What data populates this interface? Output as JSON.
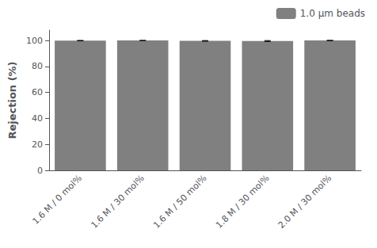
{
  "chart_data": {
    "type": "bar",
    "categories": [
      "1.6 M / 0 mol%",
      "1.6 M / 30 mol%",
      "1.6 M / 50 mol%",
      "1.8 M / 30 mol%",
      "2.0 M / 30 mol%"
    ],
    "series": [
      {
        "name": "1.0 μm beads",
        "color": "#808080",
        "values": [
          99.9,
          100.0,
          99.7,
          99.6,
          100.0
        ],
        "errors": [
          0.15,
          0.05,
          0.25,
          0.35,
          0.1
        ]
      }
    ],
    "ylabel": "Rejection (%)",
    "ylim": [
      0,
      108
    ],
    "yticks": [
      0,
      20,
      40,
      60,
      80,
      100
    ],
    "grid": false,
    "legend": "upper right"
  }
}
